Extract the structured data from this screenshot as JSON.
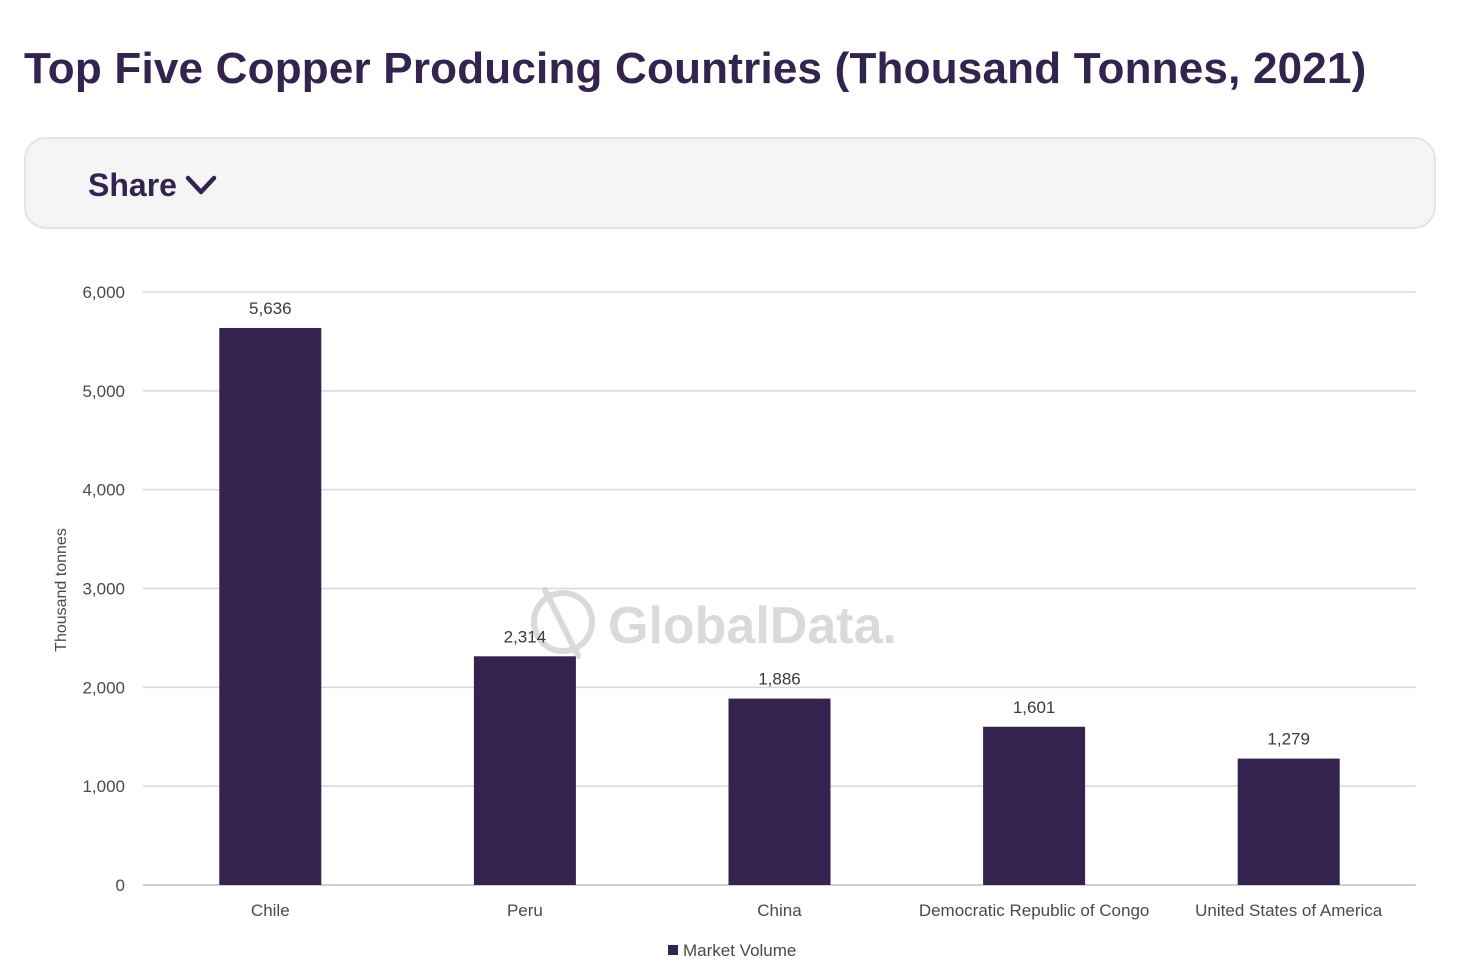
{
  "page": {
    "title": "Top Five Copper Producing Countries (Thousand Tonnes, 2021)",
    "share_label": "Share",
    "share_icon": "chevron-down-icon",
    "watermark": "GlobalData."
  },
  "colors": {
    "bar": "#35234f",
    "title": "#33234f",
    "grid": "#d9d4e6",
    "axis_text": "#4a4a4a",
    "share_bg": "#f5f5f5"
  },
  "chart_data": {
    "type": "bar",
    "categories": [
      "Chile",
      "Peru",
      "China",
      "Democratic Republic of Congo",
      "United States of America"
    ],
    "series": [
      {
        "name": "Market Volume",
        "values": [
          5636,
          2314,
          1886,
          1601,
          1279
        ],
        "value_labels": [
          "5,636",
          "2,314",
          "1,886",
          "1,601",
          "1,279"
        ]
      }
    ],
    "ylabel": "Thousand tonnes",
    "ylim": [
      0,
      6000
    ],
    "yticks": [
      0,
      1000,
      2000,
      3000,
      4000,
      5000,
      6000
    ],
    "ytick_labels": [
      "0",
      "1,000",
      "2,000",
      "3,000",
      "4,000",
      "5,000",
      "6,000"
    ],
    "grid": true,
    "legend": "bottom-center"
  }
}
